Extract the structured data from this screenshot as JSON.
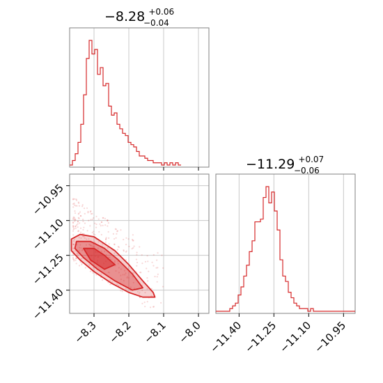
{
  "titles": {
    "p1": {
      "main": "−8.28",
      "sup": "+0.06",
      "sub": "−0.04"
    },
    "p2": {
      "main": "−11.29",
      "sup": "+0.07",
      "sub": "−0.06"
    }
  },
  "colors": {
    "accent": "#d62728",
    "grid": "#c8c8c8",
    "frame": "#808080"
  },
  "chart_data": [
    {
      "type": "histogram",
      "param": 0,
      "xlim": [
        -8.37,
        -7.97
      ],
      "bin_edges_start": -8.37,
      "bin_width": 0.008,
      "counts": [
        0,
        2,
        5,
        10,
        18,
        31,
        47,
        55,
        49,
        51,
        40,
        43,
        35,
        36,
        26,
        22,
        23,
        18,
        16,
        14,
        13,
        10,
        9,
        8,
        6,
        4,
        4,
        3,
        2,
        2,
        1,
        1,
        1,
        0,
        1,
        0,
        1,
        0,
        1,
        0
      ],
      "grid": true
    },
    {
      "type": "histogram",
      "param": 1,
      "xlim": [
        -11.5,
        -10.9
      ],
      "bin_edges_start": -11.5,
      "bin_width": 0.012,
      "counts": [
        0,
        0,
        0,
        0,
        0,
        1,
        2,
        3,
        6,
        9,
        13,
        17,
        22,
        26,
        33,
        33,
        34,
        42,
        46,
        40,
        44,
        37,
        30,
        19,
        13,
        11,
        7,
        5,
        3,
        2,
        1,
        1,
        1,
        0,
        1,
        0,
        0,
        0,
        0,
        0,
        0,
        0,
        0,
        0,
        0,
        0,
        0,
        0,
        0,
        0
      ],
      "grid": true
    },
    {
      "type": "scatter",
      "param_pair": [
        0,
        1
      ],
      "xlim": [
        -8.37,
        -7.97
      ],
      "ylim": [
        -11.5,
        -10.9
      ],
      "xticks": [
        "−8.3",
        "−8.2",
        "−8.1",
        "−8.0"
      ],
      "xtick_values": [
        -8.3,
        -8.2,
        -8.1,
        -8.0
      ],
      "yticks": [
        "−11.40",
        "−11.25",
        "−11.10",
        "−10.95"
      ],
      "ytick_values": [
        -11.4,
        -11.25,
        -11.1,
        -10.95
      ],
      "contours": [
        {
          "level": "outer",
          "points": [
            [
              -8.365,
              -11.18
            ],
            [
              -8.34,
              -11.16
            ],
            [
              -8.3,
              -11.17
            ],
            [
              -8.27,
              -11.2
            ],
            [
              -8.24,
              -11.23
            ],
            [
              -8.2,
              -11.29
            ],
            [
              -8.16,
              -11.36
            ],
            [
              -8.13,
              -11.41
            ],
            [
              -8.125,
              -11.43
            ],
            [
              -8.16,
              -11.43
            ],
            [
              -8.2,
              -11.41
            ],
            [
              -8.25,
              -11.37
            ],
            [
              -8.3,
              -11.32
            ],
            [
              -8.34,
              -11.27
            ],
            [
              -8.365,
              -11.23
            ]
          ]
        },
        {
          "level": "mid",
          "points": [
            [
              -8.35,
              -11.19
            ],
            [
              -8.31,
              -11.19
            ],
            [
              -8.27,
              -11.22
            ],
            [
              -8.23,
              -11.27
            ],
            [
              -8.19,
              -11.33
            ],
            [
              -8.16,
              -11.39
            ],
            [
              -8.19,
              -11.4
            ],
            [
              -8.24,
              -11.36
            ],
            [
              -8.29,
              -11.31
            ],
            [
              -8.33,
              -11.26
            ],
            [
              -8.355,
              -11.22
            ]
          ]
        },
        {
          "level": "inner",
          "points": [
            [
              -8.33,
              -11.22
            ],
            [
              -8.3,
              -11.22
            ],
            [
              -8.27,
              -11.25
            ],
            [
              -8.24,
              -11.29
            ],
            [
              -8.27,
              -11.31
            ],
            [
              -8.31,
              -11.27
            ]
          ]
        }
      ],
      "grid": true
    }
  ]
}
